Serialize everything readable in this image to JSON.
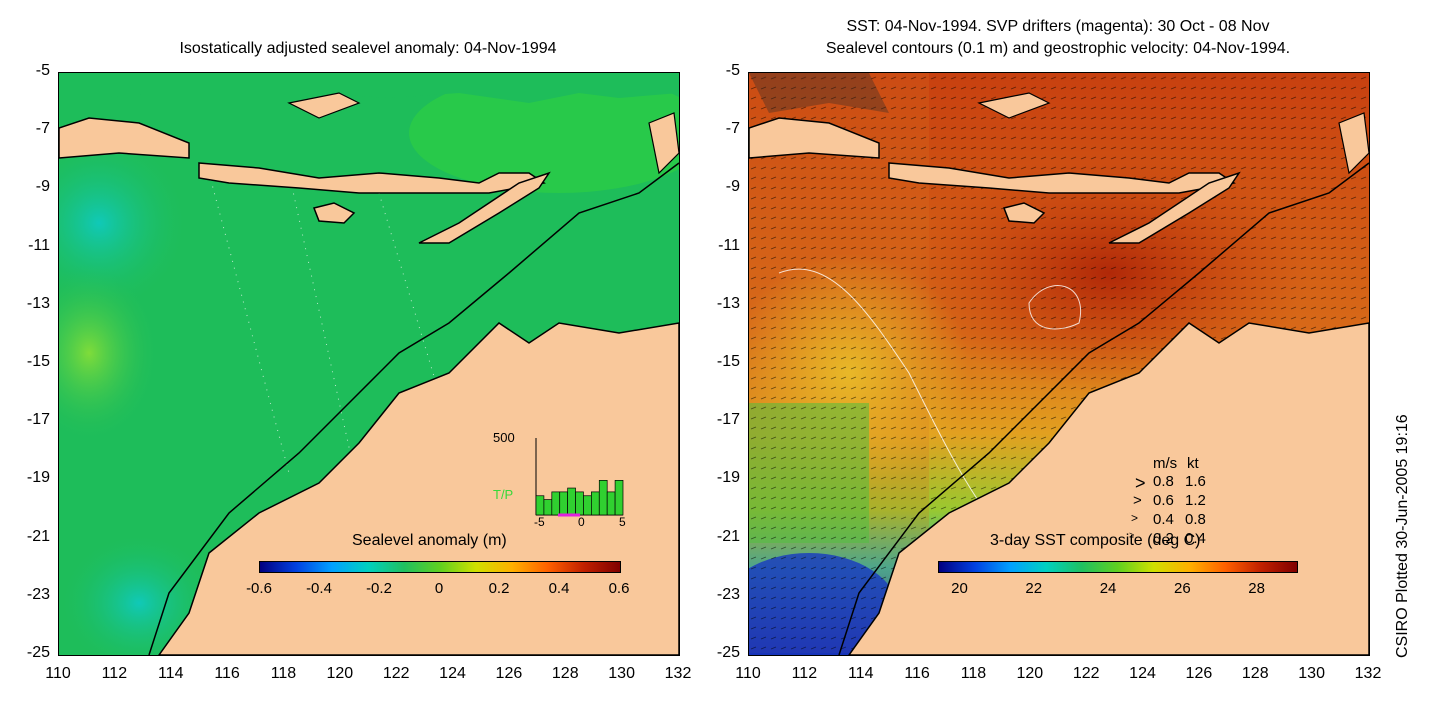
{
  "left_panel": {
    "title": "Isostatically adjusted sealevel anomaly: 04-Nov-1994",
    "colorbar": {
      "title": "Sealevel anomaly (m)",
      "labels": [
        "-0.6",
        "-0.4",
        "-0.2",
        "0",
        "0.2",
        "0.4",
        "0.6"
      ]
    },
    "inset": {
      "ymax_label": "500",
      "series_label": "T/P",
      "x_labels": [
        "-5",
        "0",
        "5"
      ],
      "bars": [
        0.25,
        0.2,
        0.3,
        0.3,
        0.35,
        0.3,
        0.25,
        0.3,
        0.45,
        0.3,
        0.45
      ]
    }
  },
  "right_panel": {
    "title_line1": "SST: 04-Nov-1994. SVP drifters (magenta): 30 Oct - 08 Nov",
    "title_line2": "Sealevel contours (0.1 m) and geostrophic velocity: 04-Nov-1994.",
    "colorbar": {
      "title": "3-day SST composite (deg C)",
      "labels": [
        "20",
        "22",
        "24",
        "26",
        "28"
      ]
    },
    "legend": {
      "header_ms": "m/s",
      "header_kt": "kt",
      "rows": [
        {
          "ms": "0.8",
          "kt": "1.6"
        },
        {
          "ms": "0.6",
          "kt": "1.2"
        },
        {
          "ms": "0.4",
          "kt": "0.8"
        },
        {
          "ms": "0.2",
          "kt": "0.4"
        }
      ]
    }
  },
  "axes": {
    "y_labels": [
      "-5",
      "-7",
      "-9",
      "-11",
      "-13",
      "-15",
      "-17",
      "-19",
      "-21",
      "-23",
      "-25"
    ],
    "x_labels": [
      "110",
      "112",
      "114",
      "116",
      "118",
      "120",
      "122",
      "124",
      "126",
      "128",
      "130",
      "132"
    ]
  },
  "credit": "CSIRO Plotted 30-Jun-2005 19:16",
  "colors": {
    "land": "#f9c89b",
    "ocean_sla": "#1ebd5a",
    "coast": "#000000"
  }
}
